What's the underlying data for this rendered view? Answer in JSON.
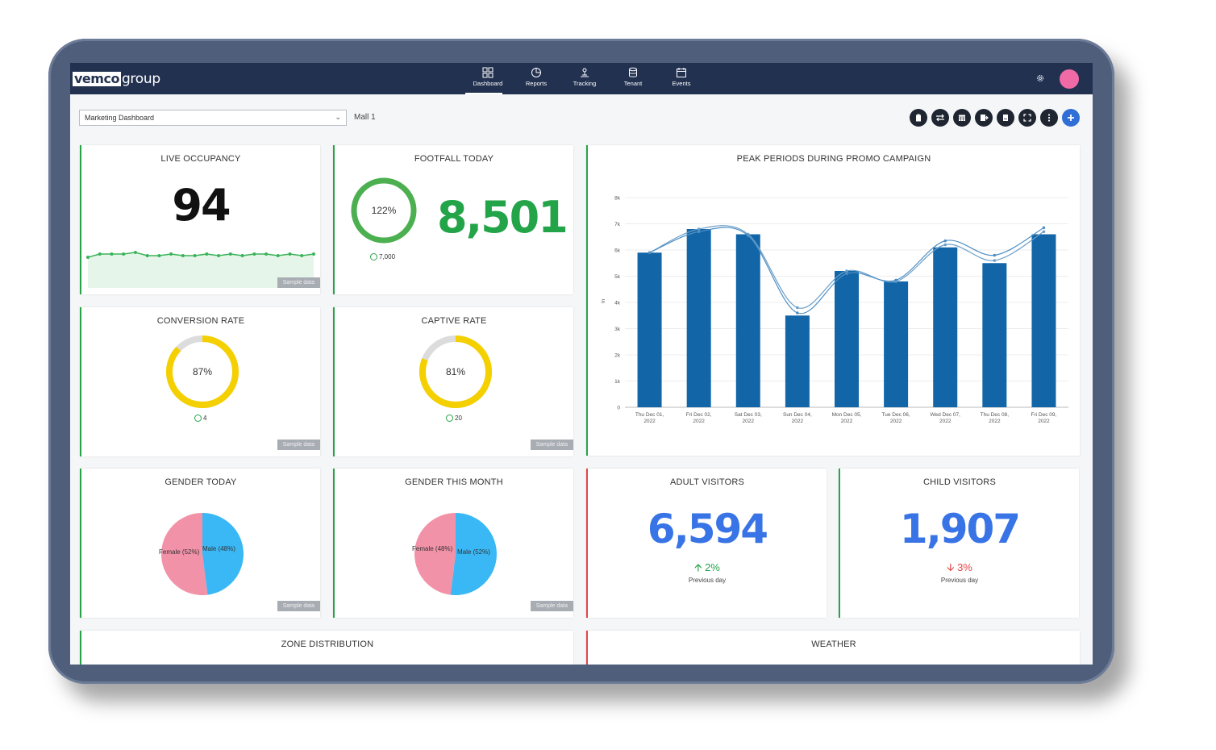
{
  "brand": {
    "logo_box": "vemco",
    "logo_text": "group"
  },
  "nav": [
    {
      "label": "Dashboard",
      "icon": "dashboard-icon",
      "active": true
    },
    {
      "label": "Reports",
      "icon": "pie-chart-icon"
    },
    {
      "label": "Tracking",
      "icon": "tracking-icon"
    },
    {
      "label": "Tenant",
      "icon": "database-icon"
    },
    {
      "label": "Events",
      "icon": "calendar-icon"
    }
  ],
  "filters": {
    "dashboard_selected": "Marketing Dashboard",
    "mall": "Mall 1"
  },
  "colors": {
    "topbar": "#223150",
    "green": "#27a546",
    "red": "#e54545",
    "blue": "#3874e6",
    "bar": "#1266a8",
    "yellow": "#f5d000",
    "female": "#f292a8",
    "male": "#3ab8f5"
  },
  "cards": {
    "live_occupancy": {
      "title": "LIVE OCCUPANCY",
      "value": "94",
      "sample": "Sample data",
      "sparkline": [
        56,
        58,
        58,
        58,
        59,
        57,
        57,
        58,
        57,
        57,
        58,
        57,
        58,
        57,
        58,
        58,
        57,
        58,
        57,
        58
      ]
    },
    "footfall_today": {
      "title": "FOOTFALL TODAY",
      "value": "8,501",
      "percent_label": "122%",
      "percent": 122,
      "target": "7,000"
    },
    "conversion_rate": {
      "title": "CONVERSION RATE",
      "percent_label": "87%",
      "percent": 87,
      "target": "4",
      "sample": "Sample data"
    },
    "captive_rate": {
      "title": "CAPTIVE RATE",
      "percent_label": "81%",
      "percent": 81,
      "target": "20",
      "sample": "Sample data"
    },
    "gender_today": {
      "title": "GENDER TODAY",
      "female_label": "Female (52%)",
      "male_label": "Male (48%)",
      "female_pct": 52,
      "male_pct": 48,
      "sample": "Sample data"
    },
    "gender_month": {
      "title": "GENDER THIS MONTH",
      "female_label": "Female (48%)",
      "male_label": "Male (52%)",
      "female_pct": 48,
      "male_pct": 52,
      "sample": "Sample data"
    },
    "adult_visitors": {
      "title": "ADULT VISITORS",
      "value": "6,594",
      "delta": "2%",
      "delta_dir": "up",
      "prev": "Previous day"
    },
    "child_visitors": {
      "title": "CHILD VISITORS",
      "value": "1,907",
      "delta": "3%",
      "delta_dir": "down",
      "prev": "Previous day"
    },
    "zone_distribution": {
      "title": "ZONE DISTRIBUTION"
    },
    "weather": {
      "title": "WEATHER"
    }
  },
  "chart_data": {
    "type": "bar",
    "title": "PEAK PERIODS DURING PROMO CAMPAIGN",
    "ylabel": "In",
    "ylim": [
      0,
      8000
    ],
    "yticks": [
      "0",
      "1k",
      "2k",
      "3k",
      "4k",
      "5k",
      "6k",
      "7k",
      "8k"
    ],
    "categories": [
      [
        "Thu Dec 01,",
        "2022"
      ],
      [
        "Fri Dec 02,",
        "2022"
      ],
      [
        "Sat Dec 03,",
        "2022"
      ],
      [
        "Sun Dec 04,",
        "2022"
      ],
      [
        "Mon Dec 05,",
        "2022"
      ],
      [
        "Tue Dec 06,",
        "2022"
      ],
      [
        "Wed Dec 07,",
        "2022"
      ],
      [
        "Thu Dec 08,",
        "2022"
      ],
      [
        "Fri Dec 09,",
        "2022"
      ]
    ],
    "values": [
      5900,
      6800,
      6600,
      3500,
      5200,
      4800,
      6100,
      5500,
      6600
    ],
    "lines": [
      [
        5900,
        6800,
        6600,
        3800,
        5200,
        4800,
        6200,
        5600,
        6700
      ],
      [
        5900,
        6700,
        6550,
        3600,
        5100,
        4850,
        6350,
        5800,
        6850
      ]
    ],
    "grid": true,
    "legend": "none"
  }
}
